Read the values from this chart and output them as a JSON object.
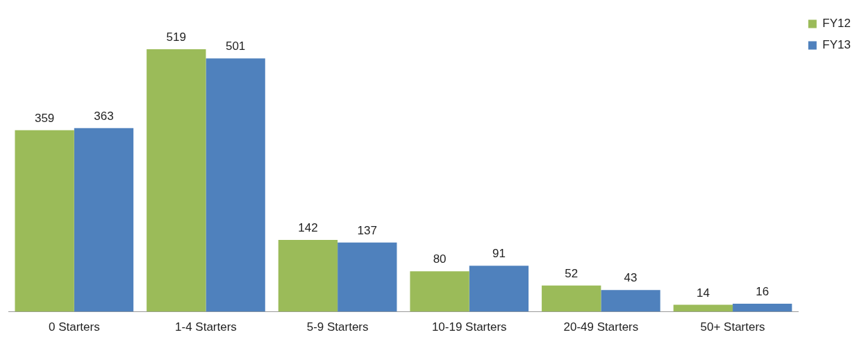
{
  "chart_data": {
    "type": "bar",
    "categories": [
      "0 Starters",
      "1-4 Starters",
      "5-9 Starters",
      "10-19 Starters",
      "20-49 Starters",
      "50+ Starters"
    ],
    "series": [
      {
        "name": "FY12",
        "color": "#9bbb59",
        "values": [
          359,
          519,
          142,
          80,
          52,
          14
        ]
      },
      {
        "name": "FY13",
        "color": "#4f81bd",
        "values": [
          363,
          501,
          137,
          91,
          43,
          16
        ]
      }
    ],
    "data_labels": true,
    "legend": "top right",
    "grid": false
  }
}
